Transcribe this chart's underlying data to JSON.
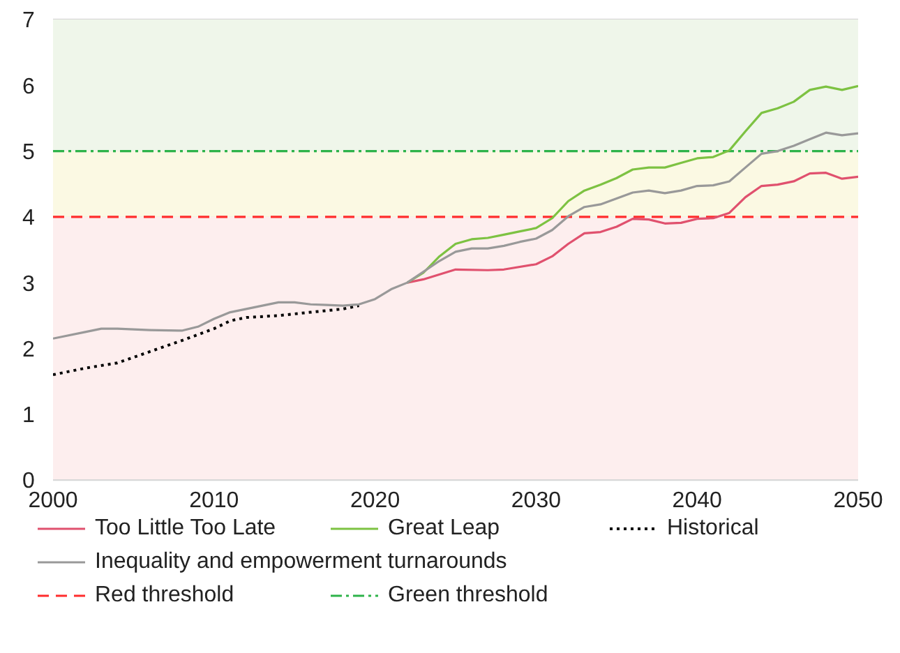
{
  "chart_data": {
    "type": "line",
    "xlim": [
      2000,
      2050
    ],
    "xticks": [
      2000,
      2010,
      2020,
      2030,
      2040,
      2050
    ],
    "ylim": [
      0,
      7
    ],
    "yticks": [
      0,
      1,
      2,
      3,
      4,
      5,
      6,
      7
    ],
    "grid": "y",
    "legend": "bottom",
    "line_style": "solid",
    "marker": "none",
    "series": [
      {
        "name": "Too Little Too Late",
        "color": "#e0516e",
        "x": [
          2022,
          2023,
          2025,
          2027,
          2028,
          2030,
          2031,
          2032,
          2033,
          2034,
          2035,
          2036,
          2037,
          2038,
          2039,
          2040,
          2041,
          2042,
          2043,
          2044,
          2045,
          2046,
          2047,
          2048,
          2049,
          2050
        ],
        "values": [
          3.0,
          3.05,
          3.2,
          3.19,
          3.2,
          3.28,
          3.4,
          3.59,
          3.75,
          3.77,
          3.85,
          3.97,
          3.96,
          3.9,
          3.91,
          3.97,
          3.98,
          4.06,
          4.3,
          4.47,
          4.49,
          4.54,
          4.66,
          4.67,
          4.58,
          4.61
        ]
      },
      {
        "name": "Great Leap",
        "color": "#7dc242",
        "x": [
          2022,
          2023,
          2024,
          2025,
          2026,
          2027,
          2028,
          2029,
          2030,
          2031,
          2032,
          2033,
          2034,
          2035,
          2036,
          2037,
          2038,
          2039,
          2040,
          2041,
          2042,
          2043,
          2044,
          2045,
          2046,
          2047,
          2048,
          2049,
          2050
        ],
        "values": [
          3.0,
          3.15,
          3.4,
          3.59,
          3.66,
          3.68,
          3.73,
          3.78,
          3.83,
          3.98,
          4.24,
          4.4,
          4.49,
          4.59,
          4.72,
          4.75,
          4.75,
          4.82,
          4.89,
          4.91,
          5.01,
          5.3,
          5.58,
          5.65,
          5.75,
          5.93,
          5.98,
          5.93,
          5.99
        ]
      },
      {
        "name": "Historical",
        "color": "#000000",
        "line_style": "dotted",
        "x": [
          2000,
          2002,
          2004,
          2006,
          2008,
          2010,
          2011,
          2012,
          2014,
          2016,
          2018,
          2019
        ],
        "values": [
          1.6,
          1.7,
          1.78,
          1.95,
          2.12,
          2.3,
          2.42,
          2.47,
          2.5,
          2.55,
          2.6,
          2.65
        ]
      },
      {
        "name": "Inequality and empowerment turnarounds",
        "color": "#999999",
        "x": [
          2000,
          2002,
          2003,
          2004,
          2006,
          2008,
          2009,
          2010,
          2011,
          2012,
          2013,
          2014,
          2015,
          2016,
          2017,
          2018,
          2019,
          2020,
          2021,
          2022,
          2024,
          2025,
          2026,
          2027,
          2028,
          2029,
          2030,
          2031,
          2032,
          2033,
          2034,
          2035,
          2036,
          2037,
          2038,
          2039,
          2040,
          2041,
          2042,
          2043,
          2044,
          2045,
          2046,
          2047,
          2048,
          2049,
          2050
        ],
        "values": [
          2.15,
          2.25,
          2.3,
          2.3,
          2.28,
          2.27,
          2.33,
          2.45,
          2.55,
          2.6,
          2.65,
          2.7,
          2.7,
          2.67,
          2.66,
          2.65,
          2.67,
          2.75,
          2.9,
          3.0,
          3.33,
          3.47,
          3.52,
          3.52,
          3.56,
          3.62,
          3.67,
          3.8,
          4.01,
          4.15,
          4.19,
          4.28,
          4.37,
          4.4,
          4.36,
          4.4,
          4.47,
          4.48,
          4.54,
          4.75,
          4.96,
          5.0,
          5.08,
          5.18,
          5.28,
          5.24,
          5.27
        ]
      }
    ],
    "ref_lines": [
      {
        "axis": "y",
        "value": 4,
        "label": "Red threshold",
        "color": "#ff2d2d",
        "line_style": "dashed"
      },
      {
        "axis": "y",
        "value": 5,
        "label": "Green threshold",
        "color": "#2eb34a",
        "line_style": "dashdot"
      }
    ],
    "bands": [
      {
        "axis": "y",
        "from": 0,
        "to": 4,
        "color": "#fdeeee"
      },
      {
        "axis": "y",
        "from": 4,
        "to": 5,
        "color": "#fbf9e3"
      },
      {
        "axis": "y",
        "from": 5,
        "to": 7,
        "color": "#eff6ea"
      }
    ]
  }
}
